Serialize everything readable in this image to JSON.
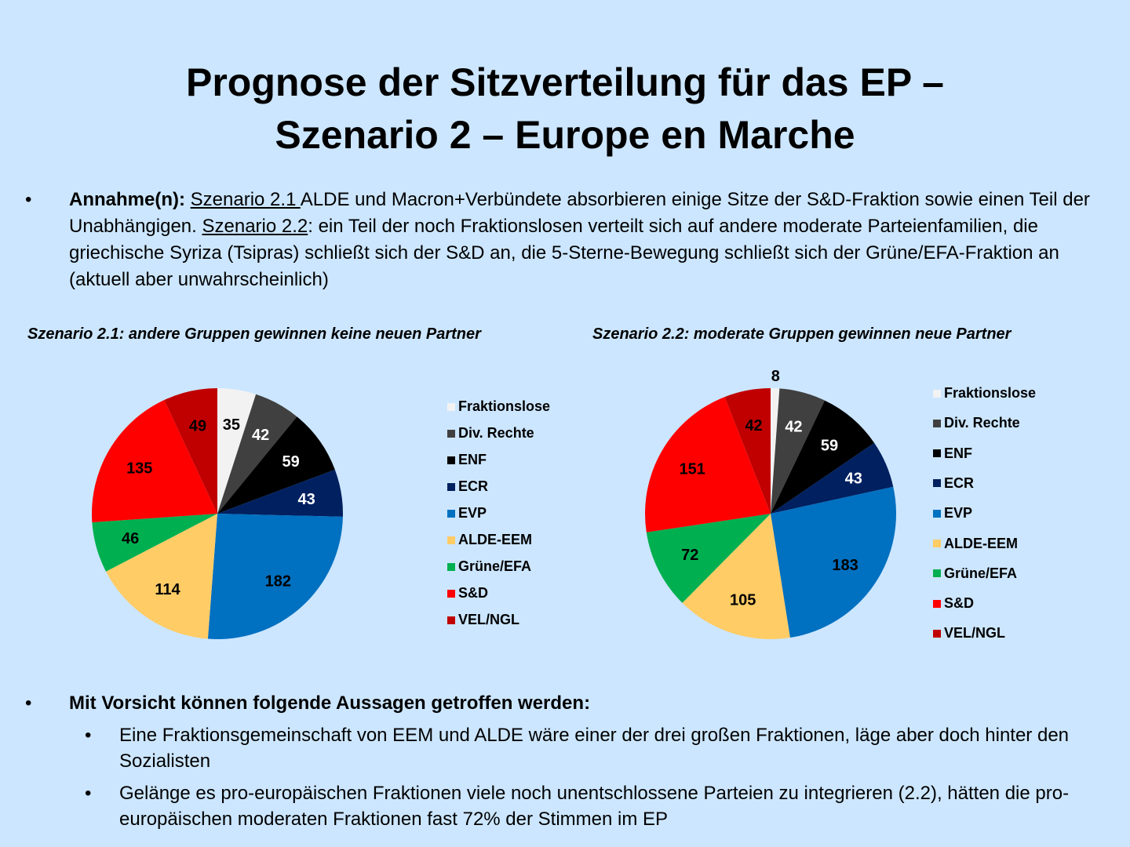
{
  "title": {
    "line1": "Prognose der Sitzverteilung für das EP –",
    "line2": "Szenario 2 – Europe en Marche"
  },
  "assumption": {
    "bullet": "•",
    "label": "Annahme(n):",
    "s21_link": "Szenario 2.1 ",
    "s21_text": "ALDE und Macron+Verbündete absorbieren einige Sitze der S&D-Fraktion sowie einen Teil der Unabhängigen. ",
    "s22_link": "Szenario 2.2",
    "s22_text": ": ein Teil der noch Fraktionslosen verteilt sich auf andere moderate Parteienfamilien, die griechische Syriza (Tsipras) schließt sich der S&D an, die 5-Sterne-Bewegung schließt sich der Grüne/EFA-Fraktion an (aktuell aber unwahrscheinlich)"
  },
  "conclusions": {
    "bullet": "•",
    "heading": "Mit Vorsicht können folgende Aussagen getroffen werden:",
    "items": [
      "Eine Fraktionsgemeinschaft von EEM und ALDE wäre einer der drei großen Fraktionen, läge aber doch hinter den Sozialisten",
      "Gelänge es pro-europäischen Fraktionen viele noch unentschlossene Parteien zu integrieren (2.2), hätten die pro-europäischen moderaten Fraktionen fast 72% der Stimmen im EP"
    ]
  },
  "chart_data": [
    {
      "type": "pie",
      "title": "Szenario 2.1: andere Gruppen gewinnen keine neuen Partner",
      "categories": [
        "Fraktionslose",
        "Div. Rechte",
        "ENF",
        "ECR",
        "EVP",
        "ALDE-EEM",
        "Grüne/EFA",
        "S&D",
        "VEL/NGL"
      ],
      "values": [
        35,
        42,
        59,
        43,
        182,
        114,
        46,
        135,
        49
      ],
      "colors": [
        "#f2f2f2",
        "#404040",
        "#000000",
        "#002060",
        "#0070c0",
        "#ffcc66",
        "#00b050",
        "#ff0000",
        "#c00000"
      ],
      "label_colors": [
        "#000",
        "#fff",
        "#fff",
        "#fff",
        "#000",
        "#000",
        "#000",
        "#000",
        "#000"
      ],
      "legend": "right"
    },
    {
      "type": "pie",
      "title": "Szenario 2.2: moderate Gruppen gewinnen neue Partner",
      "categories": [
        "Fraktionslose",
        "Div. Rechte",
        "ENF",
        "ECR",
        "EVP",
        "ALDE-EEM",
        "Grüne/EFA",
        "S&D",
        "VEL/NGL"
      ],
      "values": [
        8,
        42,
        59,
        43,
        183,
        105,
        72,
        151,
        42
      ],
      "colors": [
        "#f2f2f2",
        "#404040",
        "#000000",
        "#002060",
        "#0070c0",
        "#ffcc66",
        "#00b050",
        "#ff0000",
        "#c00000"
      ],
      "label_colors": [
        "#000",
        "#fff",
        "#fff",
        "#fff",
        "#000",
        "#000",
        "#000",
        "#000",
        "#000"
      ],
      "legend": "right"
    }
  ]
}
